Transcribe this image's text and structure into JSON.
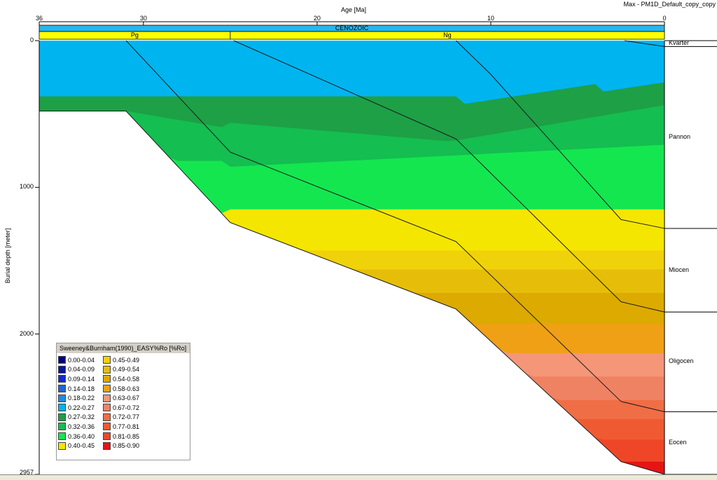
{
  "title": "Max - PM1D_Default_copy_copy",
  "chart_data": {
    "type": "area",
    "xlabel": "Age [Ma]",
    "ylabel": "Burial depth [meter]",
    "xlim": [
      36,
      0
    ],
    "ylim": [
      0,
      2957
    ],
    "x_ticks": [
      "36",
      "30",
      "20",
      "10",
      "0"
    ],
    "y_ticks": [
      "0",
      "1000",
      "2000",
      "2957"
    ],
    "era": "CENOZOIC",
    "periods": [
      {
        "label": "Pg",
        "from": 36,
        "to": 25
      },
      {
        "label": "Ng",
        "from": 25,
        "to": 0
      }
    ],
    "formations": [
      {
        "label": "Kvarter",
        "top": 0,
        "base": 40
      },
      {
        "label": "Pannon",
        "top": 40,
        "base": 1280
      },
      {
        "label": "Miocen",
        "top": 1280,
        "base": 1850
      },
      {
        "label": "Oligocen",
        "top": 1850,
        "base": 2530
      },
      {
        "label": "Eocen",
        "top": 2530,
        "base": 2957
      }
    ],
    "burial_lines": [
      {
        "name": "Kvarter base",
        "points": [
          [
            2.3,
            0
          ],
          [
            0,
            40
          ]
        ]
      },
      {
        "name": "Pannon base",
        "points": [
          [
            12.0,
            0
          ],
          [
            10.0,
            230
          ],
          [
            2.5,
            1220
          ],
          [
            0,
            1280
          ]
        ]
      },
      {
        "name": "Miocen base",
        "points": [
          [
            24.8,
            0
          ],
          [
            12.0,
            670
          ],
          [
            2.5,
            1780
          ],
          [
            0,
            1850
          ]
        ]
      },
      {
        "name": "Oligocen base",
        "points": [
          [
            31.0,
            0
          ],
          [
            25.0,
            760
          ],
          [
            12.0,
            1370
          ],
          [
            2.5,
            2460
          ],
          [
            0,
            2530
          ]
        ]
      },
      {
        "name": "Eocen base",
        "points": [
          [
            36.0,
            480
          ],
          [
            31.0,
            480
          ],
          [
            25.0,
            1240
          ],
          [
            12.0,
            1830
          ],
          [
            2.5,
            2870
          ],
          [
            0,
            2957
          ]
        ]
      }
    ],
    "legend_title": "Sweeney&Burnham(1990)_EASY%Ro [%Ro]",
    "legend": [
      {
        "label": "0.00-0.04",
        "color": "#000080"
      },
      {
        "label": "0.04-0.09",
        "color": "#0a14a0"
      },
      {
        "label": "0.09-0.14",
        "color": "#1428d8"
      },
      {
        "label": "0.14-0.18",
        "color": "#1e64dc"
      },
      {
        "label": "0.18-0.22",
        "color": "#1e8ce6"
      },
      {
        "label": "0.22-0.27",
        "color": "#00b4f0"
      },
      {
        "label": "0.27-0.32",
        "color": "#1ea046"
      },
      {
        "label": "0.32-0.36",
        "color": "#14be50"
      },
      {
        "label": "0.36-0.40",
        "color": "#14e650"
      },
      {
        "label": "0.40-0.45",
        "color": "#f5e600"
      },
      {
        "label": "0.45-0.49",
        "color": "#f0d20a"
      },
      {
        "label": "0.49-0.54",
        "color": "#e6be0a"
      },
      {
        "label": "0.54-0.58",
        "color": "#dcaa00"
      },
      {
        "label": "0.58-0.63",
        "color": "#f0a014"
      },
      {
        "label": "0.63-0.67",
        "color": "#f59678"
      },
      {
        "label": "0.67-0.72",
        "color": "#f08264"
      },
      {
        "label": "0.72-0.77",
        "color": "#f06e46"
      },
      {
        "label": "0.77-0.81",
        "color": "#f05a32"
      },
      {
        "label": "0.81-0.85",
        "color": "#f04628"
      },
      {
        "label": "0.85-0.90",
        "color": "#e61414"
      }
    ],
    "colors": {
      "era_strip": "#29b6e8",
      "period_strip": "#ffff00",
      "line": "#1a1a1a"
    }
  }
}
